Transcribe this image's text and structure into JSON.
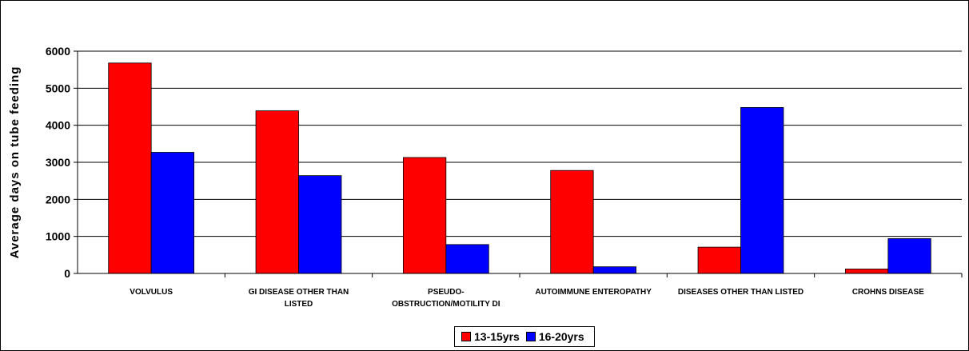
{
  "chart_data": {
    "type": "bar",
    "y_label": "Average days on tube feeding",
    "categories": [
      "VOLVULUS",
      "GI DISEASE OTHER THAN LISTED",
      "PSEUDO-OBSTRUCTION/MOTILITY DI",
      "AUTOIMMUNE ENTEROPATHY",
      "DISEASES OTHER THAN LISTED",
      "CROHNS DISEASE"
    ],
    "series": [
      {
        "name": "13-15yrs",
        "color": "#ff0000",
        "values": [
          5680,
          4390,
          3130,
          2780,
          710,
          120
        ]
      },
      {
        "name": "16-20yrs",
        "color": "#0000ff",
        "values": [
          3270,
          2640,
          780,
          180,
          4480,
          940
        ]
      }
    ],
    "ylim": [
      0,
      6000
    ],
    "yticks": [
      0,
      1000,
      2000,
      3000,
      4000,
      5000,
      6000
    ],
    "grid": true,
    "legend": "bottom"
  }
}
